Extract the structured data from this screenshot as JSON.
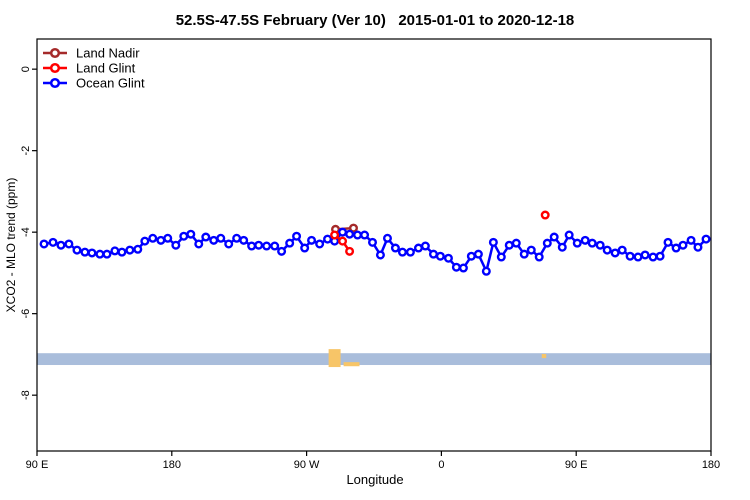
{
  "chart_data": {
    "type": "line",
    "title": "52.5S-47.5S February (Ver 10)   2015-01-01 to 2020-12-18",
    "xlabel": "Longitude",
    "ylabel": "XCO2 - MLO trend (ppm)",
    "x_unit": "degrees along axis measured eastward from 90 E (axis wraps 90E-180-90W-0-90E-180)",
    "xlim": [
      0,
      450
    ],
    "ylim": [
      -9.37,
      0.74
    ],
    "grid": false,
    "x_ticks": {
      "positions": [
        0,
        90,
        180,
        270,
        360,
        450
      ],
      "labels": [
        "90 E",
        "180",
        "90 W",
        "0",
        "90 E",
        "180"
      ]
    },
    "y_ticks": {
      "positions": [
        0,
        -2,
        -4,
        -6,
        -8
      ],
      "labels": [
        "0",
        "-2",
        "-4",
        "-6",
        "-8"
      ]
    },
    "legend": [
      {
        "label": "Land Nadir",
        "color": "#A52A2A"
      },
      {
        "label": "Land Glint",
        "color": "#FF0000"
      },
      {
        "label": "Ocean Glint",
        "color": "#0000FF"
      }
    ],
    "legend_position": "top-left",
    "series": [
      {
        "name": "Land Nadir",
        "color": "#A52A2A",
        "segments": [
          {
            "x": [
              199.3,
              211.3
            ],
            "y": [
              -3.93,
              -3.9
            ]
          }
        ]
      },
      {
        "name": "Ocean Glint",
        "color": "#0000FF",
        "segments": [
          {
            "x": [
              4.7,
              10.7,
              16.0,
              21.3,
              26.7,
              32.0,
              36.7,
              42.0,
              46.7,
              52.0,
              56.7,
              62.0,
              67.3,
              72.0,
              77.3,
              82.7,
              87.3,
              92.7,
              98.0,
              102.7,
              108.0,
              112.7,
              118.0,
              122.7,
              128.0,
              133.3,
              138.0,
              143.3,
              148.0,
              153.3,
              158.7,
              163.3,
              168.7,
              173.3,
              178.7,
              183.3,
              188.7,
              194.0,
              198.7,
              204.0,
              208.7,
              214.0,
              218.7,
              224.0,
              229.3,
              234.0,
              239.3,
              244.0,
              249.3,
              254.7,
              259.3,
              264.7,
              269.3,
              274.7,
              280.0,
              284.7,
              290.0,
              294.7,
              300.0,
              304.7,
              310.0,
              315.3,
              320.0,
              325.3,
              330.0,
              335.3,
              340.7,
              345.3,
              350.7,
              355.3,
              360.7,
              366.0,
              370.7,
              376.0,
              380.7,
              386.0,
              390.7,
              396.0,
              401.3,
              406.0,
              411.3,
              416.0,
              421.3,
              426.7,
              431.3,
              436.7,
              441.3,
              446.7
            ],
            "y": [
              -4.29,
              -4.25,
              -4.32,
              -4.29,
              -4.44,
              -4.49,
              -4.51,
              -4.54,
              -4.54,
              -4.46,
              -4.49,
              -4.44,
              -4.42,
              -4.22,
              -4.15,
              -4.2,
              -4.15,
              -4.32,
              -4.1,
              -4.05,
              -4.29,
              -4.12,
              -4.2,
              -4.15,
              -4.29,
              -4.15,
              -4.2,
              -4.34,
              -4.32,
              -4.34,
              -4.34,
              -4.47,
              -4.27,
              -4.1,
              -4.39,
              -4.2,
              -4.29,
              -4.17,
              -4.22,
              -4.0,
              -4.05,
              -4.07,
              -4.07,
              -4.25,
              -4.56,
              -4.15,
              -4.39,
              -4.49,
              -4.49,
              -4.39,
              -4.34,
              -4.54,
              -4.59,
              -4.64,
              -4.86,
              -4.88,
              -4.59,
              -4.54,
              -4.96,
              -4.25,
              -4.61,
              -4.32,
              -4.27,
              -4.54,
              -4.44,
              -4.61,
              -4.27,
              -4.12,
              -4.37,
              -4.07,
              -4.27,
              -4.2,
              -4.27,
              -4.32,
              -4.44,
              -4.51,
              -4.44,
              -4.59,
              -4.61,
              -4.56,
              -4.61,
              -4.59,
              -4.25,
              -4.39,
              -4.32,
              -4.2,
              -4.37,
              -4.17
            ]
          }
        ]
      },
      {
        "name": "Land Glint",
        "color": "#FF0000",
        "segments": [
          {
            "x": [
              198.7,
              204.0,
              208.7
            ],
            "y": [
              -4.07,
              -4.22,
              -4.47
            ]
          },
          {
            "x": [
              339.3
            ],
            "y": [
              -3.58
            ]
          }
        ]
      }
    ],
    "annotations": {
      "band": {
        "color": "#A9BDDB",
        "x0": 0,
        "x1": 450,
        "y_top": -6.97,
        "y_bottom": -7.26
      },
      "marks": [
        {
          "color": "#F7C568",
          "x0": 194.7,
          "x1": 202.7,
          "y_top": -6.87,
          "y_bottom": -7.31
        },
        {
          "color": "#F7C568",
          "x0": 204.7,
          "x1": 215.3,
          "y_top": -7.19,
          "y_bottom": -7.29
        },
        {
          "color": "#F7C568",
          "x0": 337.0,
          "x1": 340.0,
          "y_top": -6.99,
          "y_bottom": -7.09
        }
      ]
    }
  }
}
